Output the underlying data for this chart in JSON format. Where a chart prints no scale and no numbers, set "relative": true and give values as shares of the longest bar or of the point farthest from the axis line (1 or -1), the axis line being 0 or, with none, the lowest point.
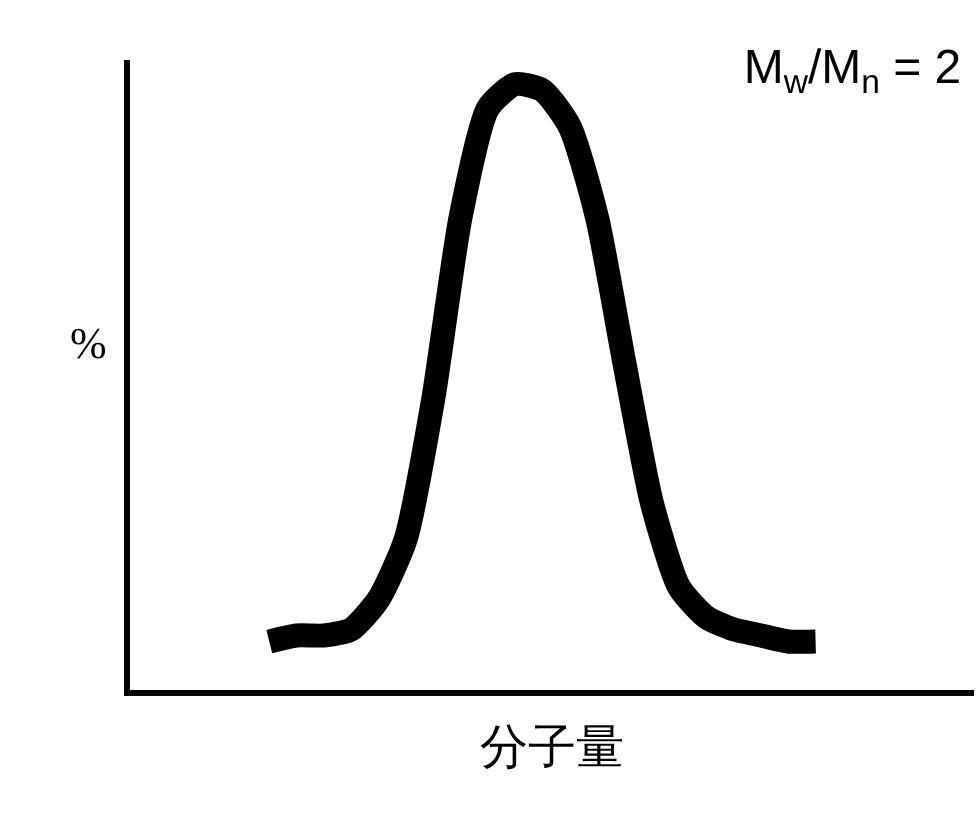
{
  "chart_data": {
    "type": "line",
    "title": "M$_{w}$/M$_{n}$ = 2",
    "xlabel": "分子量",
    "ylabel": "%",
    "relative": true,
    "categories": [
      null,
      null,
      null,
      null,
      null,
      null,
      null,
      null,
      null,
      null,
      null,
      null,
      null,
      null,
      null,
      null,
      null,
      null,
      null,
      null,
      null
    ],
    "series": [
      {
        "color": "#000000",
        "values": [
          0.08,
          0.09,
          0.09,
          0.1,
          0.15,
          0.25,
          0.48,
          0.78,
          0.96,
          1,
          0.99,
          0.93,
          0.78,
          0.54,
          0.31,
          0.17,
          0.12,
          0.1,
          0.09,
          0.08,
          0.08
        ]
      }
    ],
    "marker": "none",
    "line_style": "solid"
  }
}
